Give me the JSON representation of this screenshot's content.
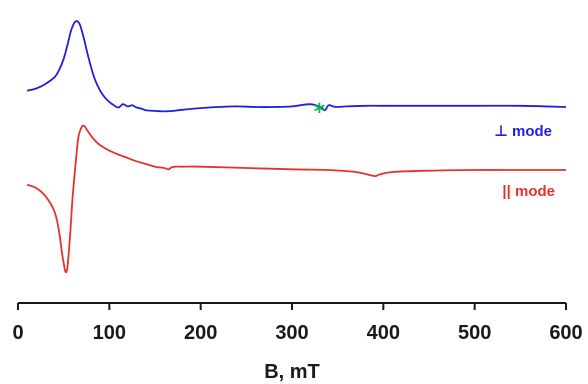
{
  "chart_data": {
    "type": "line",
    "xlabel": "B, mT",
    "ylabel": "",
    "xlim": [
      0,
      600
    ],
    "xticks": [
      0,
      100,
      200,
      300,
      400,
      500,
      600
    ],
    "grid": false,
    "series": [
      {
        "name": "⊥ mode",
        "color": "#1f1fe0",
        "x": [
          10,
          20,
          30,
          40,
          45,
          50,
          55,
          58,
          62,
          65,
          68,
          72,
          76,
          80,
          85,
          90,
          95,
          100,
          105,
          110,
          115,
          120,
          125,
          130,
          135,
          140,
          150,
          160,
          170,
          180,
          200,
          220,
          240,
          260,
          280,
          300,
          320,
          332,
          336,
          340,
          345,
          350,
          360,
          380,
          400,
          450,
          500,
          550,
          600
        ],
        "y": [
          0.38,
          0.42,
          0.5,
          0.62,
          0.75,
          0.95,
          1.25,
          1.45,
          1.6,
          1.62,
          1.55,
          1.32,
          1.05,
          0.8,
          0.55,
          0.38,
          0.26,
          0.18,
          0.12,
          0.08,
          0.14,
          0.1,
          0.12,
          0.08,
          0.06,
          0.03,
          0.02,
          0.01,
          0.02,
          0.04,
          0.07,
          0.09,
          0.1,
          0.09,
          0.09,
          0.1,
          0.14,
          0.08,
          0.03,
          0.12,
          0.1,
          0.09,
          0.1,
          0.11,
          0.11,
          0.11,
          0.11,
          0.11,
          0.09
        ]
      },
      {
        "name": "|| mode",
        "color": "#e8302c",
        "x": [
          10,
          20,
          30,
          40,
          45,
          48,
          50,
          52,
          54,
          56,
          58,
          60,
          63,
          66,
          70,
          73,
          76,
          80,
          85,
          90,
          100,
          110,
          120,
          130,
          140,
          150,
          160,
          165,
          168,
          172,
          180,
          200,
          250,
          300,
          340,
          370,
          390,
          395,
          410,
          450,
          500,
          550,
          600
        ],
        "y": [
          -0.25,
          -0.3,
          -0.42,
          -0.65,
          -0.95,
          -1.25,
          -1.42,
          -1.55,
          -1.5,
          -1.2,
          -0.8,
          -0.4,
          0.05,
          0.45,
          0.62,
          0.62,
          0.56,
          0.48,
          0.4,
          0.34,
          0.26,
          0.2,
          0.15,
          0.1,
          0.06,
          0.02,
          0.0,
          -0.02,
          0.01,
          0.02,
          0.02,
          0.02,
          0.0,
          -0.02,
          -0.03,
          -0.06,
          -0.12,
          -0.1,
          -0.06,
          -0.04,
          -0.03,
          -0.03,
          -0.03
        ]
      }
    ],
    "annotation": "*",
    "annotation_x": 330,
    "annotation_color": "#12b05a"
  }
}
